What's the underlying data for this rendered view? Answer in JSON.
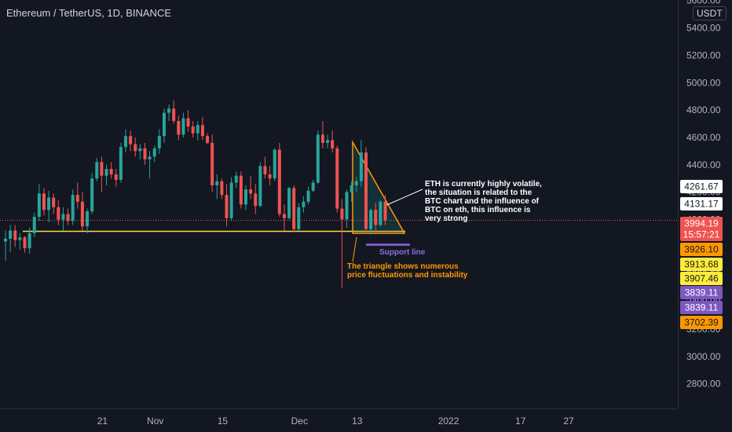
{
  "header": {
    "symbol": "Ethereum / TetherUS, 1D, BINANCE",
    "currency": "USDT"
  },
  "colors": {
    "background": "#131722",
    "grid": "#1e222d",
    "up": "#26a69a",
    "down": "#ef5350",
    "support": "#ffd54f",
    "triangle": "#ff9800",
    "support_marker": "#7e57c2",
    "price_line": "#ef5350"
  },
  "price_axis": {
    "ticks": [
      2800,
      3000,
      3200,
      3400,
      3600,
      3800,
      4000,
      4200,
      4400,
      4600,
      4800,
      5000,
      5200,
      5400,
      5600
    ],
    "tick_labels": [
      "2800.00",
      "3000.00",
      "3200.00",
      "3400.00",
      "3600.00",
      "3800.00",
      "4000.00",
      "4200.00",
      "4400.00",
      "4600.00",
      "4800.00",
      "5000.00",
      "5200.00",
      "5400.00",
      "5600.00"
    ]
  },
  "time_axis": {
    "labels": [
      "21",
      "Nov",
      "15",
      "Dec",
      "13",
      "2022",
      "17",
      "27"
    ],
    "label_days": [
      20,
      31,
      45,
      61,
      73,
      92,
      107,
      117
    ]
  },
  "price_tags": [
    {
      "label": "4261.67",
      "value": 4261.67,
      "bg": "#ffffff",
      "fg": "#131722"
    },
    {
      "label": "4131.17",
      "value": 4131.17,
      "bg": "#ffffff",
      "fg": "#131722"
    },
    {
      "label": "3994.19",
      "value": 3994.19,
      "bg": "#ef5350",
      "fg": "#ffffff"
    },
    {
      "label": "15:57:21",
      "value": 3914,
      "bg": "#ef5350",
      "fg": "#ffffff"
    },
    {
      "label": "3926.10",
      "value": 3926.1,
      "bg": "#ff9800",
      "fg": "#131722"
    },
    {
      "label": "3913.68",
      "value": 3913.68,
      "bg": "#ffeb3b",
      "fg": "#131722"
    },
    {
      "label": "3907.46",
      "value": 3907.46,
      "bg": "#ffeb3b",
      "fg": "#131722"
    },
    {
      "label": "3839.11",
      "value": 3839.11,
      "bg": "#7e57c2",
      "fg": "#ffffff"
    },
    {
      "label": "3839.11",
      "value": 3839.11,
      "bg": "#7e57c2",
      "fg": "#ffffff"
    },
    {
      "label": "3702.39",
      "value": 3702.39,
      "bg": "#ff9800",
      "fg": "#131722"
    }
  ],
  "annotations": {
    "eth_note": [
      "ETH is currently highly volatile,",
      "the situation is related to the",
      "BTC chart and the influence of",
      "BTC on eth, this influence is",
      "very strong"
    ],
    "support_label": "Support line",
    "triangle_note": [
      "The triangle shows numerous",
      "price fluctuations and instability"
    ]
  },
  "drawings": {
    "support_level": 3914,
    "triangle": [
      [
        59,
        4580
      ],
      [
        59,
        3914
      ],
      [
        66,
        3914
      ]
    ],
    "support_marker_level": 3839
  },
  "chart_data": {
    "type": "candlestick",
    "title": "Ethereum / TetherUS, 1D, BINANCE",
    "x_axis": "date (day index from Oct 1 2021)",
    "y_axis": "price (USDT)",
    "ylim": [
      2700,
      5650
    ],
    "grid": false,
    "candles": [
      {
        "day": 0,
        "open": 3840,
        "high": 3920,
        "low": 3700,
        "close": 3860
      },
      {
        "day": 1,
        "open": 3860,
        "high": 3960,
        "low": 3760,
        "close": 3920
      },
      {
        "day": 2,
        "open": 3920,
        "high": 3960,
        "low": 3800,
        "close": 3850
      },
      {
        "day": 3,
        "open": 3850,
        "high": 3900,
        "low": 3780,
        "close": 3870
      },
      {
        "day": 4,
        "open": 3870,
        "high": 3880,
        "low": 3760,
        "close": 3790
      },
      {
        "day": 5,
        "open": 3790,
        "high": 3940,
        "low": 3750,
        "close": 3900
      },
      {
        "day": 6,
        "open": 3900,
        "high": 4050,
        "low": 3870,
        "close": 4020
      },
      {
        "day": 7,
        "open": 4020,
        "high": 4260,
        "low": 3990,
        "close": 4190
      },
      {
        "day": 8,
        "open": 4190,
        "high": 4230,
        "low": 4030,
        "close": 4070
      },
      {
        "day": 9,
        "open": 4070,
        "high": 4210,
        "low": 3980,
        "close": 4160
      },
      {
        "day": 10,
        "open": 4160,
        "high": 4190,
        "low": 4040,
        "close": 4090
      },
      {
        "day": 11,
        "open": 4090,
        "high": 4140,
        "low": 3960,
        "close": 4000
      },
      {
        "day": 12,
        "open": 4000,
        "high": 4090,
        "low": 3920,
        "close": 4040
      },
      {
        "day": 13,
        "open": 4040,
        "high": 4080,
        "low": 3960,
        "close": 3990
      },
      {
        "day": 14,
        "open": 3990,
        "high": 4220,
        "low": 3960,
        "close": 4180
      },
      {
        "day": 15,
        "open": 4180,
        "high": 4270,
        "low": 4080,
        "close": 4130
      },
      {
        "day": 16,
        "open": 4130,
        "high": 4200,
        "low": 3920,
        "close": 3950
      },
      {
        "day": 17,
        "open": 3950,
        "high": 4080,
        "low": 3900,
        "close": 4060
      },
      {
        "day": 18,
        "open": 4060,
        "high": 4340,
        "low": 4040,
        "close": 4300
      },
      {
        "day": 19,
        "open": 4300,
        "high": 4450,
        "low": 4280,
        "close": 4420
      },
      {
        "day": 20,
        "open": 4420,
        "high": 4460,
        "low": 4200,
        "close": 4320
      },
      {
        "day": 21,
        "open": 4320,
        "high": 4400,
        "low": 4250,
        "close": 4370
      },
      {
        "day": 22,
        "open": 4370,
        "high": 4420,
        "low": 4300,
        "close": 4330
      },
      {
        "day": 23,
        "open": 4330,
        "high": 4370,
        "low": 4240,
        "close": 4290
      },
      {
        "day": 24,
        "open": 4290,
        "high": 4560,
        "low": 4270,
        "close": 4530
      },
      {
        "day": 25,
        "open": 4530,
        "high": 4660,
        "low": 4490,
        "close": 4610
      },
      {
        "day": 26,
        "open": 4610,
        "high": 4650,
        "low": 4500,
        "close": 4550
      },
      {
        "day": 27,
        "open": 4550,
        "high": 4600,
        "low": 4460,
        "close": 4500
      },
      {
        "day": 28,
        "open": 4500,
        "high": 4550,
        "low": 4440,
        "close": 4520
      },
      {
        "day": 29,
        "open": 4520,
        "high": 4560,
        "low": 4400,
        "close": 4440
      },
      {
        "day": 30,
        "open": 4440,
        "high": 4500,
        "low": 4300,
        "close": 4460
      },
      {
        "day": 31,
        "open": 4460,
        "high": 4540,
        "low": 4420,
        "close": 4520
      },
      {
        "day": 32,
        "open": 4520,
        "high": 4660,
        "low": 4480,
        "close": 4610
      },
      {
        "day": 33,
        "open": 4610,
        "high": 4810,
        "low": 4560,
        "close": 4780
      },
      {
        "day": 34,
        "open": 4780,
        "high": 4840,
        "low": 4720,
        "close": 4810
      },
      {
        "day": 35,
        "open": 4810,
        "high": 4870,
        "low": 4700,
        "close": 4720
      },
      {
        "day": 36,
        "open": 4720,
        "high": 4760,
        "low": 4580,
        "close": 4620
      },
      {
        "day": 37,
        "open": 4620,
        "high": 4780,
        "low": 4600,
        "close": 4740
      },
      {
        "day": 38,
        "open": 4740,
        "high": 4800,
        "low": 4640,
        "close": 4680
      },
      {
        "day": 39,
        "open": 4680,
        "high": 4720,
        "low": 4600,
        "close": 4630
      },
      {
        "day": 40,
        "open": 4630,
        "high": 4720,
        "low": 4580,
        "close": 4690
      },
      {
        "day": 41,
        "open": 4690,
        "high": 4750,
        "low": 4580,
        "close": 4610
      },
      {
        "day": 42,
        "open": 4610,
        "high": 4630,
        "low": 4550,
        "close": 4560
      },
      {
        "day": 43,
        "open": 4560,
        "high": 4620,
        "low": 4200,
        "close": 4250
      },
      {
        "day": 44,
        "open": 4250,
        "high": 4330,
        "low": 4150,
        "close": 4280
      },
      {
        "day": 45,
        "open": 4280,
        "high": 4300,
        "low": 4150,
        "close": 4180
      },
      {
        "day": 46,
        "open": 4180,
        "high": 4260,
        "low": 3950,
        "close": 4010
      },
      {
        "day": 47,
        "open": 4010,
        "high": 4310,
        "low": 3990,
        "close": 4270
      },
      {
        "day": 48,
        "open": 4270,
        "high": 4350,
        "low": 4230,
        "close": 4320
      },
      {
        "day": 49,
        "open": 4320,
        "high": 4350,
        "low": 4080,
        "close": 4110
      },
      {
        "day": 50,
        "open": 4110,
        "high": 4250,
        "low": 4070,
        "close": 4220
      },
      {
        "day": 51,
        "open": 4220,
        "high": 4320,
        "low": 4150,
        "close": 4190
      },
      {
        "day": 52,
        "open": 4190,
        "high": 4260,
        "low": 4040,
        "close": 4100
      },
      {
        "day": 53,
        "open": 4100,
        "high": 4420,
        "low": 4090,
        "close": 4390
      },
      {
        "day": 54,
        "open": 4390,
        "high": 4460,
        "low": 4300,
        "close": 4330
      },
      {
        "day": 55,
        "open": 4330,
        "high": 4390,
        "low": 4250,
        "close": 4300
      },
      {
        "day": 56,
        "open": 4300,
        "high": 4520,
        "low": 4280,
        "close": 4510
      },
      {
        "day": 57,
        "open": 4510,
        "high": 4560,
        "low": 4020,
        "close": 4040
      },
      {
        "day": 58,
        "open": 4040,
        "high": 4110,
        "low": 3920,
        "close": 4010
      },
      {
        "day": 59,
        "open": 4010,
        "high": 4240,
        "low": 4000,
        "close": 4230
      },
      {
        "day": 60,
        "open": 4230,
        "high": 4250,
        "low": 3910,
        "close": 3930
      },
      {
        "day": 61,
        "open": 3930,
        "high": 4120,
        "low": 3920,
        "close": 4090
      },
      {
        "day": 62,
        "open": 4090,
        "high": 4170,
        "low": 4050,
        "close": 4130
      },
      {
        "day": 63,
        "open": 4130,
        "high": 4240,
        "low": 4110,
        "close": 4210
      },
      {
        "day": 64,
        "open": 4210,
        "high": 4290,
        "low": 4200,
        "close": 4270
      },
      {
        "day": 65,
        "open": 4270,
        "high": 4650,
        "low": 4260,
        "close": 4620
      },
      {
        "day": 66,
        "open": 4620,
        "high": 4720,
        "low": 4520,
        "close": 4560
      },
      {
        "day": 67,
        "open": 4560,
        "high": 4620,
        "low": 4520,
        "close": 4580
      },
      {
        "day": 68,
        "open": 4580,
        "high": 4650,
        "low": 4490,
        "close": 4520
      },
      {
        "day": 69,
        "open": 4520,
        "high": 4540,
        "low": 4050,
        "close": 4080
      },
      {
        "day": 70,
        "open": 4080,
        "high": 4150,
        "low": 3500,
        "close": 4000
      },
      {
        "day": 71,
        "open": 4000,
        "high": 4220,
        "low": 3940,
        "close": 4200
      },
      {
        "day": 72,
        "open": 4200,
        "high": 4280,
        "low": 4130,
        "close": 4250
      },
      {
        "day": 73,
        "open": 4250,
        "high": 4310,
        "low": 4200,
        "close": 4280
      },
      {
        "day": 74,
        "open": 4280,
        "high": 4580,
        "low": 4240,
        "close": 4490
      },
      {
        "day": 75,
        "open": 4490,
        "high": 4530,
        "low": 3900,
        "close": 3930
      },
      {
        "day": 76,
        "open": 3930,
        "high": 4080,
        "low": 3890,
        "close": 4070
      },
      {
        "day": 77,
        "open": 4070,
        "high": 4120,
        "low": 3910,
        "close": 3960
      },
      {
        "day": 78,
        "open": 3960,
        "high": 4140,
        "low": 3950,
        "close": 4130
      },
      {
        "day": 79,
        "open": 4130,
        "high": 4180,
        "low": 3960,
        "close": 3994.19
      }
    ],
    "last_price": 3994.19,
    "countdown": "15:57:21"
  }
}
